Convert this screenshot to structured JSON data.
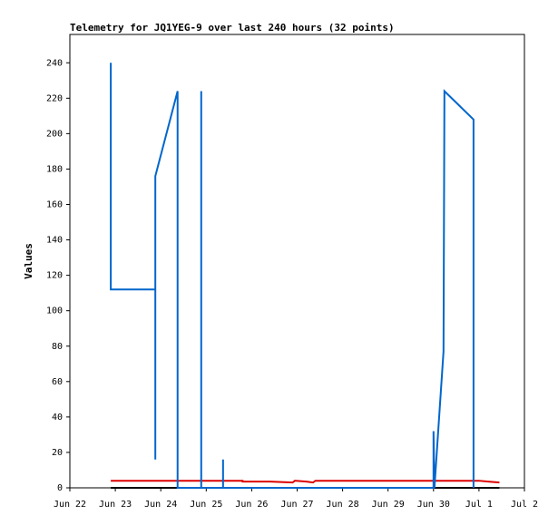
{
  "chart_data": {
    "type": "line",
    "title": "Telemetry for JQ1YEG-9 over last 240 hours (32 points)",
    "y_label": "Values",
    "xlim": [
      22,
      32
    ],
    "xticks": [
      {
        "value": 22,
        "label": "Jun 22"
      },
      {
        "value": 23,
        "label": "Jun 23"
      },
      {
        "value": 24,
        "label": "Jun 24"
      },
      {
        "value": 25,
        "label": "Jun 25"
      },
      {
        "value": 26,
        "label": "Jun 26"
      },
      {
        "value": 27,
        "label": "Jun 27"
      },
      {
        "value": 28,
        "label": "Jun 28"
      },
      {
        "value": 29,
        "label": "Jun 29"
      },
      {
        "value": 30,
        "label": "Jun 30"
      },
      {
        "value": 31,
        "label": "Jul 1"
      },
      {
        "value": 32,
        "label": "Jul 2"
      }
    ],
    "ylim": [
      0,
      256
    ],
    "yticks": [
      0,
      20,
      40,
      60,
      80,
      100,
      120,
      140,
      160,
      180,
      200,
      220,
      240
    ],
    "series": [
      {
        "color": "#000000",
        "x": [
          22.9,
          31.45
        ],
        "values": [
          0,
          0
        ]
      },
      {
        "color": "#dd0000",
        "x": [
          22.9,
          25.8,
          25.8,
          26.4,
          26.9,
          26.95,
          27.2,
          27.35,
          27.4,
          31.0,
          31.2,
          31.45
        ],
        "values": [
          4,
          4,
          3.5,
          3.5,
          3,
          4,
          3.5,
          3,
          4,
          4,
          3.5,
          3
        ]
      },
      {
        "color": "#0066cc",
        "x": [
          22.9,
          22.9,
          23.88,
          23.88,
          23.88,
          24.37,
          24.37,
          24.89,
          24.89,
          24.89,
          25.37,
          25.37,
          25.37,
          30.0,
          30.0,
          30.02,
          30.22,
          30.24,
          30.88,
          30.88
        ],
        "values": [
          240,
          112,
          112,
          16,
          176,
          224,
          0,
          0,
          224,
          0,
          0,
          16,
          0,
          0,
          32,
          0,
          77,
          224,
          208,
          0
        ]
      }
    ]
  }
}
